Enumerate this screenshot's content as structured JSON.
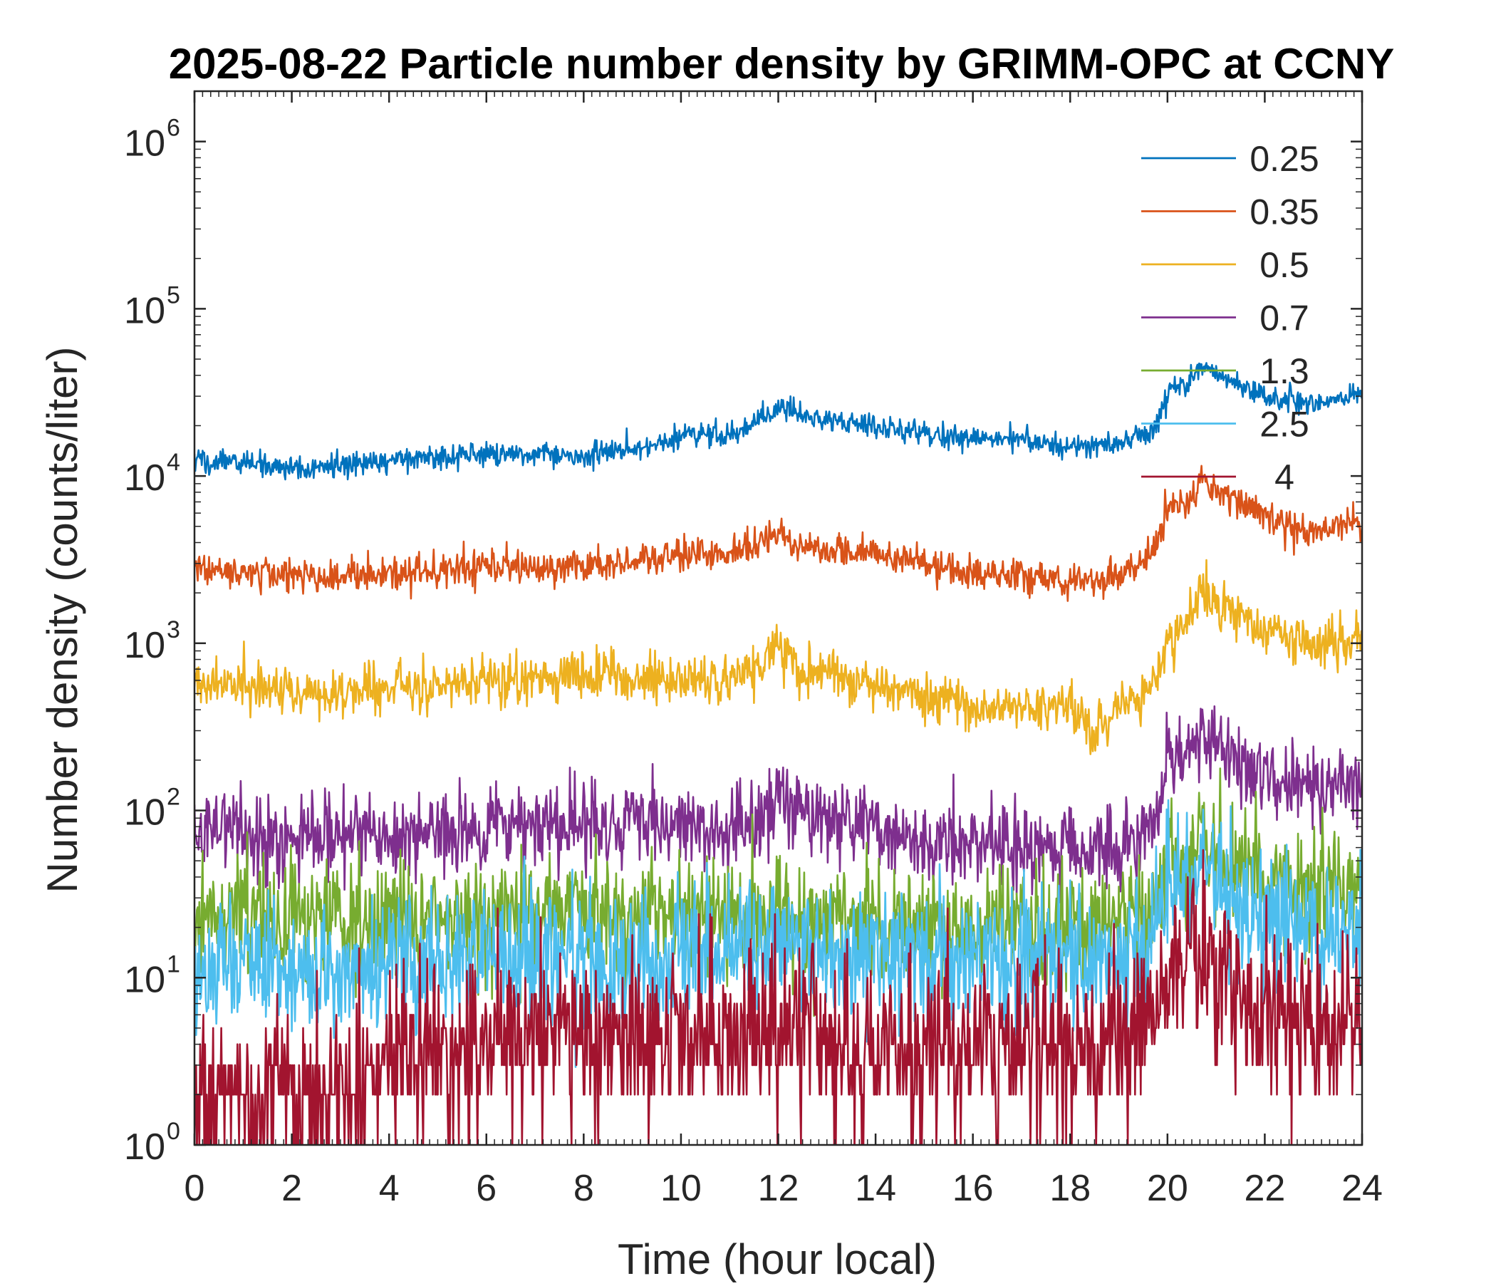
{
  "chart_data": {
    "type": "line",
    "title": "2025-08-22 Particle number density by GRIMM-OPC at CCNY",
    "xlabel": "Time (hour local)",
    "ylabel": "Number density (counts/liter)",
    "xlim": [
      0,
      24
    ],
    "ylim": [
      1,
      2000000
    ],
    "yscale": "log",
    "xticks": [
      0,
      2,
      4,
      6,
      8,
      10,
      12,
      14,
      16,
      18,
      20,
      22,
      24
    ],
    "xtick_labels": [
      "0",
      "2",
      "4",
      "6",
      "8",
      "10",
      "12",
      "14",
      "16",
      "18",
      "20",
      "22",
      "24"
    ],
    "yticks": [
      1,
      10,
      100,
      1000,
      10000,
      100000,
      1000000
    ],
    "ytick_labels": [
      {
        "base": "10",
        "exp": "0"
      },
      {
        "base": "10",
        "exp": "1"
      },
      {
        "base": "10",
        "exp": "2"
      },
      {
        "base": "10",
        "exp": "3"
      },
      {
        "base": "10",
        "exp": "4"
      },
      {
        "base": "10",
        "exp": "5"
      },
      {
        "base": "10",
        "exp": "6"
      }
    ],
    "legend_position": "top-right",
    "grid": false,
    "series": [
      {
        "name": "0.25",
        "color": "#0072BD",
        "noise": 0.035,
        "x": [
          0,
          1,
          2,
          3,
          4,
          5,
          6,
          7,
          8,
          9,
          10,
          11,
          11.5,
          12,
          12.5,
          13,
          14,
          15,
          16,
          17,
          18,
          18.5,
          19,
          19.5,
          19.8,
          20.0,
          20.4,
          20.7,
          21,
          21.5,
          22,
          23,
          24
        ],
        "y": [
          12500,
          12000,
          11000,
          11500,
          12500,
          13000,
          13500,
          13500,
          13000,
          14500,
          17000,
          18000,
          20000,
          26000,
          23000,
          22000,
          19500,
          18000,
          16500,
          16500,
          15000,
          15500,
          16000,
          17500,
          21000,
          32000,
          35000,
          46000,
          40000,
          35000,
          30000,
          27000,
          31000
        ]
      },
      {
        "name": "0.35",
        "color": "#D95319",
        "noise": 0.05,
        "x": [
          0,
          1,
          2,
          3,
          4,
          5,
          6,
          7,
          8,
          9,
          10,
          11,
          11.5,
          12,
          12.5,
          13,
          14,
          15,
          16,
          17,
          18,
          18.5,
          19,
          19.5,
          19.8,
          20.0,
          20.4,
          20.7,
          21,
          21.5,
          22,
          23,
          24
        ],
        "y": [
          2800,
          2700,
          2500,
          2500,
          2600,
          2700,
          2900,
          2800,
          2800,
          3100,
          3300,
          3500,
          3800,
          4600,
          3900,
          3600,
          3400,
          3000,
          2500,
          2500,
          2400,
          2300,
          2600,
          3000,
          4000,
          6500,
          7000,
          9500,
          8000,
          7000,
          6000,
          4500,
          5500
        ]
      },
      {
        "name": "0.5",
        "color": "#EDB120",
        "noise": 0.07,
        "x": [
          0,
          1,
          2,
          3,
          4,
          5,
          6,
          7,
          8,
          9,
          10,
          11,
          11.5,
          12,
          12.5,
          13,
          14,
          15,
          16,
          17,
          18,
          18.5,
          19,
          19.5,
          19.8,
          20.0,
          20.4,
          20.7,
          21,
          21.5,
          22,
          23,
          24
        ],
        "y": [
          600,
          560,
          520,
          500,
          540,
          570,
          600,
          620,
          620,
          630,
          620,
          600,
          650,
          1000,
          700,
          650,
          560,
          500,
          420,
          400,
          430,
          300,
          420,
          500,
          650,
          1000,
          1400,
          2000,
          1700,
          1500,
          1200,
          950,
          1050
        ]
      },
      {
        "name": "0.7",
        "color": "#7E2F8E",
        "noise": 0.12,
        "x": [
          0,
          1,
          2,
          3,
          4,
          5,
          6,
          7,
          8,
          9,
          10,
          11,
          11.5,
          12,
          12.5,
          13,
          14,
          15,
          16,
          17,
          18,
          18.5,
          19,
          19.5,
          19.8,
          20.0,
          20.4,
          20.7,
          21,
          21.5,
          22,
          23,
          24
        ],
        "y": [
          80,
          75,
          70,
          72,
          75,
          78,
          80,
          82,
          80,
          85,
          85,
          82,
          88,
          120,
          95,
          90,
          80,
          72,
          65,
          62,
          62,
          58,
          62,
          70,
          100,
          180,
          220,
          260,
          240,
          200,
          150,
          140,
          150
        ]
      },
      {
        "name": "1.3",
        "color": "#77AC30",
        "noise": 0.18,
        "x": [
          0,
          1,
          2,
          3,
          4,
          5,
          6,
          7,
          8,
          9,
          10,
          11,
          11.5,
          12,
          12.5,
          13,
          14,
          15,
          16,
          17,
          18,
          18.5,
          19,
          19.5,
          19.8,
          20.0,
          20.4,
          20.7,
          21,
          21.5,
          22,
          23,
          24
        ],
        "y": [
          25,
          24,
          22,
          22,
          23,
          24,
          25,
          25,
          24,
          24,
          24,
          23,
          24,
          28,
          25,
          24,
          22,
          21,
          20,
          20,
          20,
          19,
          20,
          22,
          28,
          45,
          55,
          65,
          55,
          45,
          38,
          35,
          40
        ]
      },
      {
        "name": "2.5",
        "color": "#4DBEEE",
        "noise": 0.2,
        "x": [
          0,
          1,
          2,
          3,
          4,
          5,
          6,
          7,
          8,
          9,
          10,
          11,
          11.5,
          12,
          12.5,
          13,
          14,
          15,
          16,
          17,
          18,
          18.5,
          19,
          19.5,
          19.8,
          20.0,
          20.4,
          20.7,
          21,
          21.5,
          22,
          23,
          24
        ],
        "y": [
          12,
          12,
          11,
          11,
          12,
          13,
          14,
          14,
          13,
          13,
          14,
          14,
          15,
          17,
          15,
          15,
          14,
          14,
          13,
          13,
          13,
          13,
          14,
          15,
          18,
          30,
          38,
          42,
          36,
          28,
          22,
          18,
          20
        ]
      },
      {
        "name": "4",
        "color": "#A2142F",
        "noise": 0.26,
        "x": [
          0,
          1,
          2,
          3,
          4,
          5,
          6,
          7,
          8,
          9,
          10,
          11,
          11.5,
          12,
          12.5,
          13,
          14,
          15,
          16,
          17,
          18,
          18.5,
          19,
          19.5,
          19.8,
          20.0,
          20.4,
          20.7,
          21,
          21.5,
          22,
          23,
          24
        ],
        "y": [
          2,
          2,
          2,
          2,
          3,
          4,
          4,
          4.5,
          5,
          5,
          5,
          5,
          5,
          5,
          5,
          4.5,
          4,
          4,
          4,
          4,
          4,
          4,
          4.5,
          5,
          7,
          12,
          15,
          15,
          11,
          8,
          6,
          5,
          6
        ]
      }
    ]
  }
}
